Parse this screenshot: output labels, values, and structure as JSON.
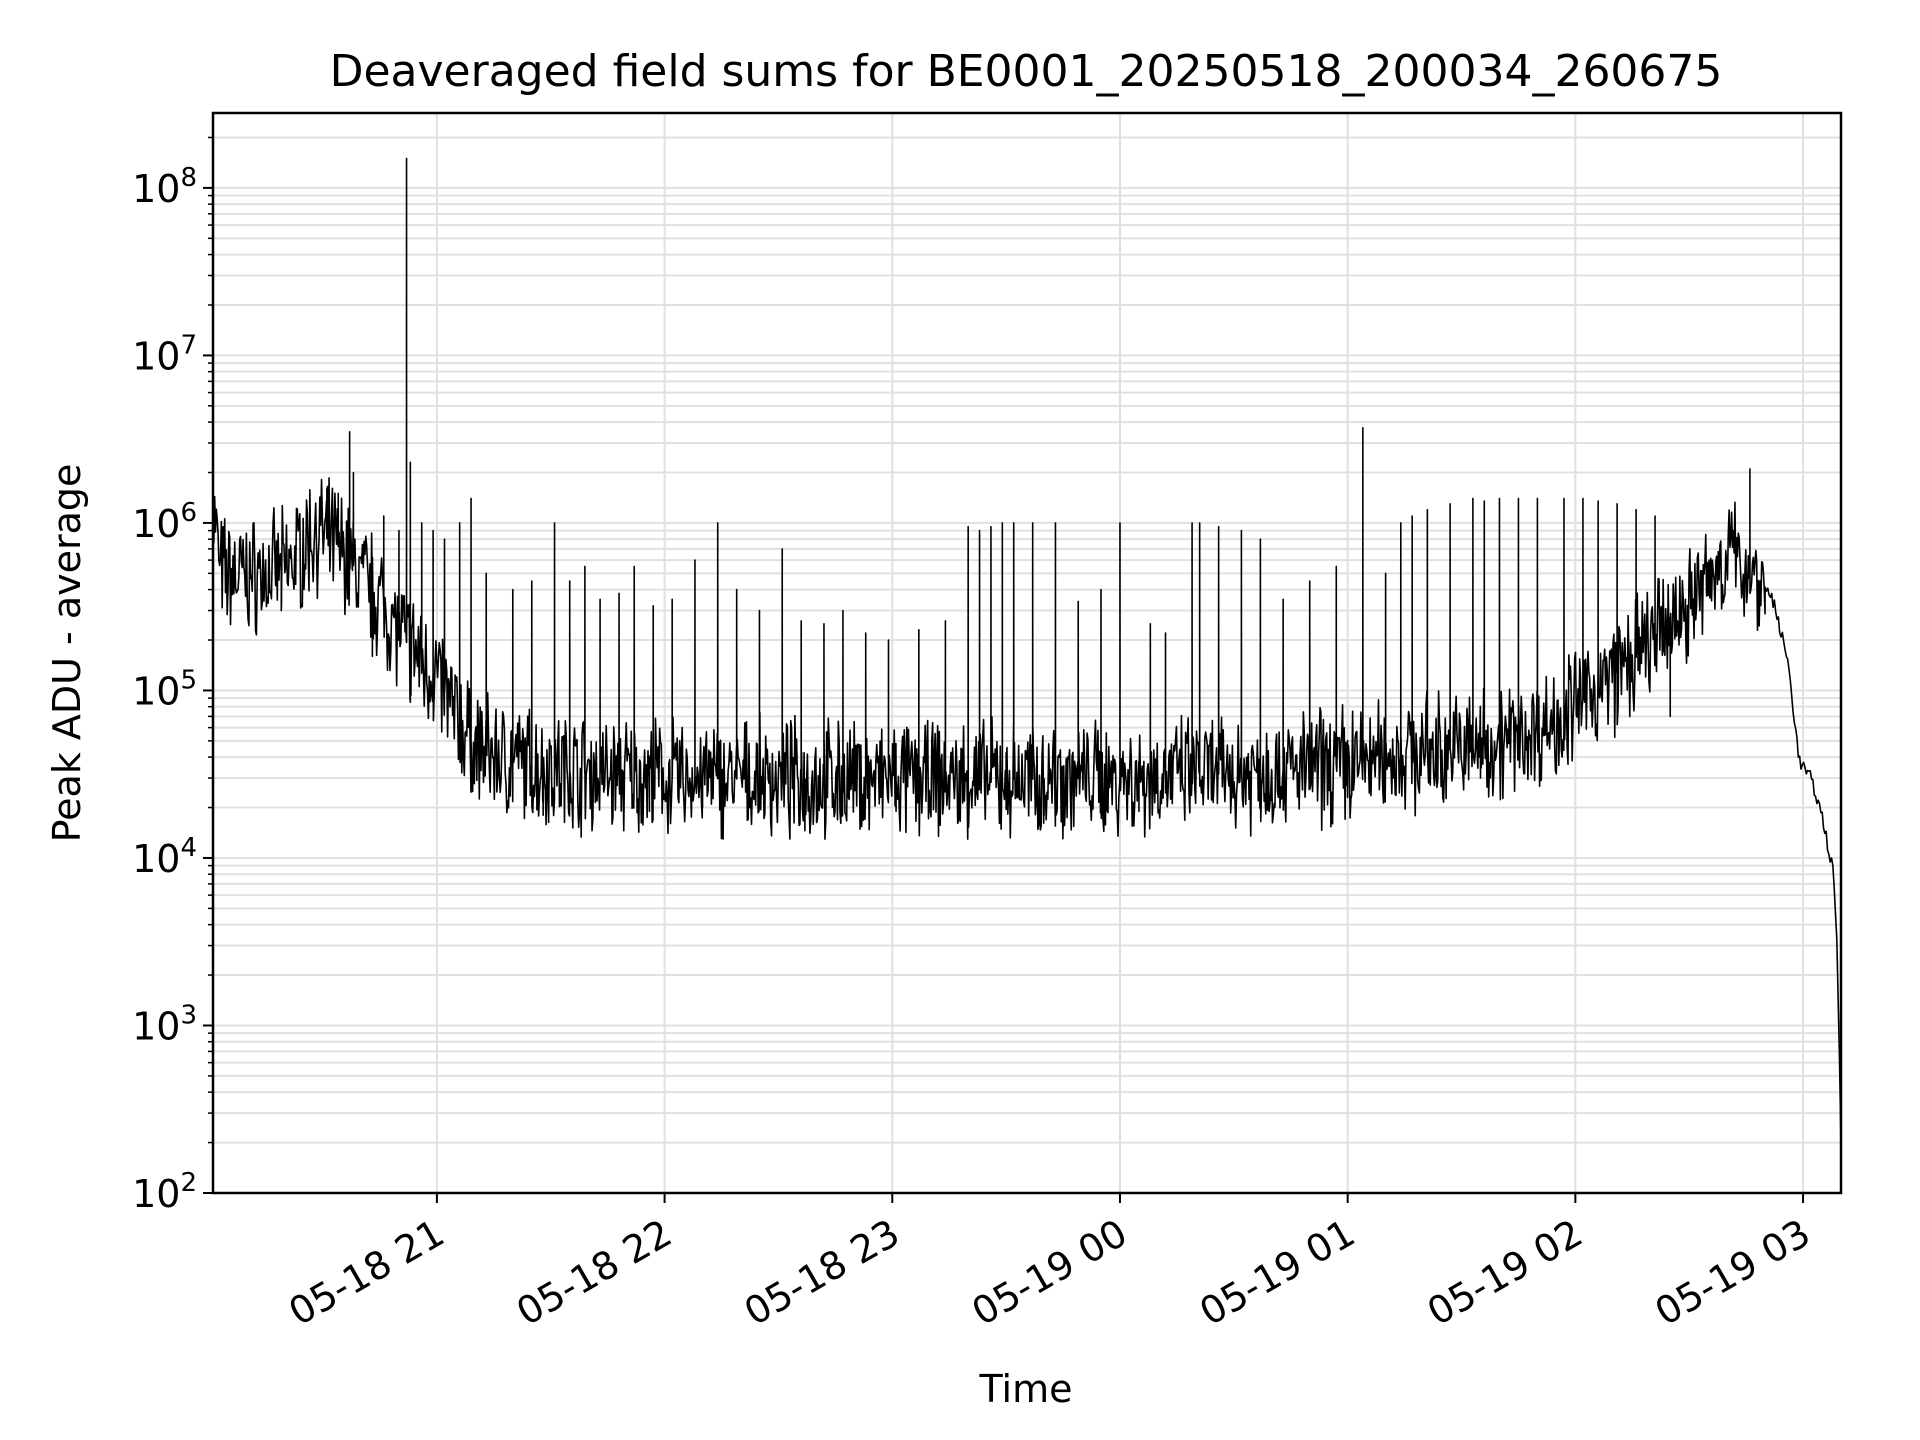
{
  "chart_data": {
    "type": "line",
    "title": "Deaveraged field sums for BE0001_20250518_200034_260675",
    "xlabel": "Time",
    "ylabel": "Peak ADU - average",
    "yscale": "log",
    "ylim": [
      100,
      280000000
    ],
    "xlim": [
      "2025-05-18 20:01",
      "2025-05-19 03:10"
    ],
    "grid": true,
    "line_color": "#000000",
    "x_ticks": [
      {
        "t": "2025-05-18 21:00",
        "label": "05-18 21"
      },
      {
        "t": "2025-05-18 22:00",
        "label": "05-18 22"
      },
      {
        "t": "2025-05-18 23:00",
        "label": "05-18 23"
      },
      {
        "t": "2025-05-19 00:00",
        "label": "05-19 00"
      },
      {
        "t": "2025-05-19 01:00",
        "label": "05-19 01"
      },
      {
        "t": "2025-05-19 02:00",
        "label": "05-19 02"
      },
      {
        "t": "2025-05-19 03:00",
        "label": "05-19 03"
      }
    ],
    "y_ticks": [
      {
        "v": 100,
        "base": "10",
        "exp": "2"
      },
      {
        "v": 1000,
        "base": "10",
        "exp": "3"
      },
      {
        "v": 10000,
        "base": "10",
        "exp": "4"
      },
      {
        "v": 100000,
        "base": "10",
        "exp": "5"
      },
      {
        "v": 1000000,
        "base": "10",
        "exp": "6"
      },
      {
        "v": 10000000,
        "base": "10",
        "exp": "7"
      },
      {
        "v": 100000000,
        "base": "10",
        "exp": "8"
      }
    ],
    "series": [
      {
        "name": "",
        "baseline": [
          [
            "2025-05-18 20:01",
            1300000
          ],
          [
            "2025-05-18 20:03",
            500000
          ],
          [
            "2025-05-18 20:10",
            480000
          ],
          [
            "2025-05-18 20:20",
            520000
          ],
          [
            "2025-05-18 20:28",
            900000
          ],
          [
            "2025-05-18 20:35",
            700000
          ],
          [
            "2025-05-18 20:40",
            480000
          ],
          [
            "2025-05-18 20:45",
            350000
          ],
          [
            "2025-05-18 20:50",
            220000
          ],
          [
            "2025-05-18 20:55",
            160000
          ],
          [
            "2025-05-18 21:00",
            120000
          ],
          [
            "2025-05-18 21:05",
            70000
          ],
          [
            "2025-05-18 21:10",
            45000
          ],
          [
            "2025-05-18 21:20",
            37000
          ],
          [
            "2025-05-18 21:40",
            32000
          ],
          [
            "2025-05-18 22:00",
            30000
          ],
          [
            "2025-05-18 23:00",
            29000
          ],
          [
            "2025-05-19 00:00",
            30000
          ],
          [
            "2025-05-19 00:30",
            32000
          ],
          [
            "2025-05-19 00:50",
            34000
          ],
          [
            "2025-05-19 01:10",
            40000
          ],
          [
            "2025-05-19 01:30",
            45000
          ],
          [
            "2025-05-19 01:45",
            52000
          ],
          [
            "2025-05-19 01:55",
            65000
          ],
          [
            "2025-05-19 02:05",
            100000
          ],
          [
            "2025-05-19 02:15",
            150000
          ],
          [
            "2025-05-19 02:25",
            250000
          ],
          [
            "2025-05-19 02:35",
            450000
          ],
          [
            "2025-05-19 02:40",
            650000
          ],
          [
            "2025-05-19 02:45",
            550000
          ],
          [
            "2025-05-19 02:48",
            480000
          ],
          [
            "2025-05-19 02:52",
            350000
          ],
          [
            "2025-05-19 02:56",
            150000
          ],
          [
            "2025-05-19 02:59",
            38000
          ],
          [
            "2025-05-19 03:02",
            30000
          ],
          [
            "2025-05-19 03:05",
            18000
          ],
          [
            "2025-05-19 03:08",
            8000
          ],
          [
            "2025-05-19 03:09",
            3000
          ],
          [
            "2025-05-19 03:10",
            200
          ]
        ],
        "spikes": [
          [
            "2025-05-18 20:21",
            600000
          ],
          [
            "2025-05-18 20:31",
            1600000
          ],
          [
            "2025-05-18 20:34",
            1500000
          ],
          [
            "2025-05-18 20:37",
            3500000
          ],
          [
            "2025-05-18 20:38",
            2000000
          ],
          [
            "2025-05-18 20:46",
            1100000
          ],
          [
            "2025-05-18 20:50",
            900000
          ],
          [
            "2025-05-18 20:52",
            150000000
          ],
          [
            "2025-05-18 20:53",
            2300000
          ],
          [
            "2025-05-18 20:56",
            1000000
          ],
          [
            "2025-05-18 20:59",
            900000
          ],
          [
            "2025-05-18 21:02",
            800000
          ],
          [
            "2025-05-18 21:06",
            1000000
          ],
          [
            "2025-05-18 21:09",
            1400000
          ],
          [
            "2025-05-18 21:13",
            500000
          ],
          [
            "2025-05-18 21:20",
            400000
          ],
          [
            "2025-05-18 21:25",
            450000
          ],
          [
            "2025-05-18 21:31",
            1000000
          ],
          [
            "2025-05-18 21:35",
            450000
          ],
          [
            "2025-05-18 21:39",
            550000
          ],
          [
            "2025-05-18 21:43",
            350000
          ],
          [
            "2025-05-18 21:48",
            380000
          ],
          [
            "2025-05-18 21:52",
            550000
          ],
          [
            "2025-05-18 21:57",
            320000
          ],
          [
            "2025-05-18 22:02",
            350000
          ],
          [
            "2025-05-18 22:08",
            600000
          ],
          [
            "2025-05-18 22:14",
            1000000
          ],
          [
            "2025-05-18 22:19",
            400000
          ],
          [
            "2025-05-18 22:25",
            300000
          ],
          [
            "2025-05-18 22:31",
            700000
          ],
          [
            "2025-05-18 22:36",
            260000
          ],
          [
            "2025-05-18 22:42",
            250000
          ],
          [
            "2025-05-18 22:47",
            300000
          ],
          [
            "2025-05-18 22:53",
            220000
          ],
          [
            "2025-05-18 22:59",
            200000
          ],
          [
            "2025-05-18 23:07",
            230000
          ],
          [
            "2025-05-18 23:14",
            260000
          ],
          [
            "2025-05-18 23:20",
            950000
          ],
          [
            "2025-05-18 23:23",
            900000
          ],
          [
            "2025-05-18 23:26",
            950000
          ],
          [
            "2025-05-18 23:29",
            1000000
          ],
          [
            "2025-05-18 23:32",
            1000000
          ],
          [
            "2025-05-18 23:37",
            1000000
          ],
          [
            "2025-05-18 23:43",
            1000000
          ],
          [
            "2025-05-18 23:49",
            340000
          ],
          [
            "2025-05-18 23:55",
            400000
          ],
          [
            "2025-05-19 00:00",
            1000000
          ],
          [
            "2025-05-19 00:08",
            250000
          ],
          [
            "2025-05-19 00:12",
            220000
          ],
          [
            "2025-05-19 00:19",
            1000000
          ],
          [
            "2025-05-19 00:21",
            1000000
          ],
          [
            "2025-05-19 00:26",
            950000
          ],
          [
            "2025-05-19 00:32",
            900000
          ],
          [
            "2025-05-19 00:37",
            800000
          ],
          [
            "2025-05-19 00:43",
            350000
          ],
          [
            "2025-05-19 00:50",
            450000
          ],
          [
            "2025-05-19 00:57",
            550000
          ],
          [
            "2025-05-19 01:04",
            3700000
          ],
          [
            "2025-05-19 01:10",
            500000
          ],
          [
            "2025-05-19 01:14",
            1000000
          ],
          [
            "2025-05-19 01:17",
            1100000
          ],
          [
            "2025-05-19 01:21",
            1200000
          ],
          [
            "2025-05-19 01:27",
            1300000
          ],
          [
            "2025-05-19 01:33",
            1400000
          ],
          [
            "2025-05-19 01:36",
            1350000
          ],
          [
            "2025-05-19 01:40",
            1400000
          ],
          [
            "2025-05-19 01:45",
            1400000
          ],
          [
            "2025-05-19 01:50",
            1400000
          ],
          [
            "2025-05-19 01:57",
            1400000
          ],
          [
            "2025-05-19 02:02",
            1400000
          ],
          [
            "2025-05-19 02:06",
            1350000
          ],
          [
            "2025-05-19 02:11",
            1300000
          ],
          [
            "2025-05-19 02:16",
            1200000
          ],
          [
            "2025-05-19 02:21",
            1100000
          ],
          [
            "2025-05-19 02:29",
            350000
          ],
          [
            "2025-05-19 02:46",
            2100000
          ]
        ],
        "dips": [
          [
            "2025-05-18 20:19",
            300000
          ],
          [
            "2025-05-18 20:43",
            160000
          ],
          [
            "2025-05-18 20:53",
            85000
          ],
          [
            "2025-05-18 21:28",
            18000
          ],
          [
            "2025-05-18 21:56",
            19000
          ],
          [
            "2025-05-18 22:10",
            20000
          ],
          [
            "2025-05-18 22:37",
            20000
          ],
          [
            "2025-05-18 23:01",
            19000
          ],
          [
            "2025-05-18 23:30",
            19500
          ],
          [
            "2025-05-18 23:40",
            18000
          ],
          [
            "2025-05-19 00:05",
            19000
          ],
          [
            "2025-05-19 00:40",
            22000
          ],
          [
            "2025-05-19 01:00",
            23000
          ],
          [
            "2025-05-19 01:35",
            30000
          ],
          [
            "2025-05-19 02:25",
            70000
          ]
        ]
      }
    ]
  }
}
